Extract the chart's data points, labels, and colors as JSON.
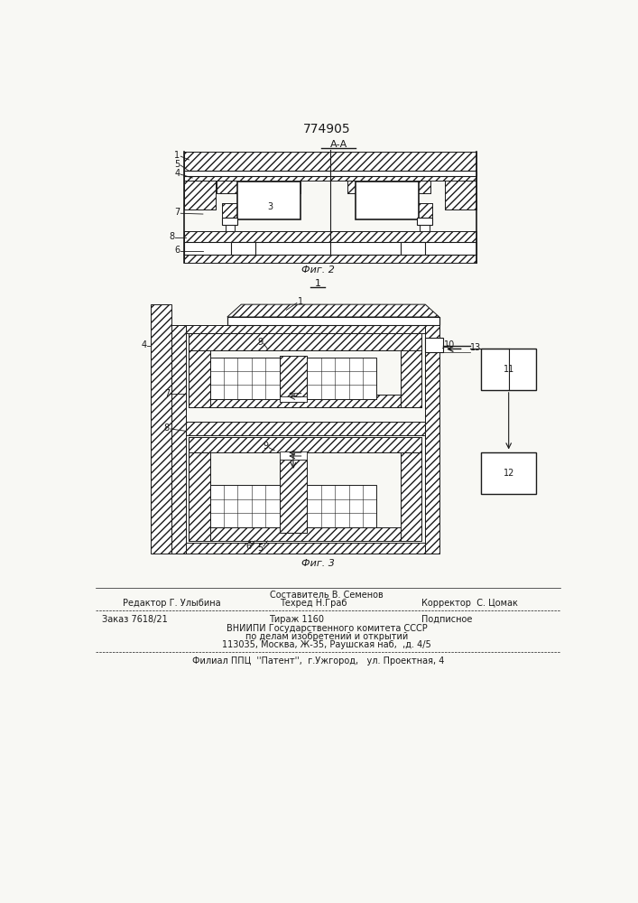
{
  "patent_number": "774905",
  "fig2_label": "Фиг. 2",
  "fig3_label": "Фиг. 3",
  "fig1_label": "1",
  "footer_line1_center": "Составитель В. Семенов",
  "footer_line2_left": "Редактор Г. Улыбина",
  "footer_line2_center": "Техред Н.Граб",
  "footer_line2_right": "Корректор  С. Цомак",
  "footer_line3_left": "Заказ 7618/21",
  "footer_line3_center": "Тираж 1160",
  "footer_line3_right": "Подписное",
  "footer_line4": "ВНИИПИ Государственного комитета СССР",
  "footer_line5": "по делам изобретений и открытий",
  "footer_line6": "113035, Москва, Ж-35, Раушская наб,  ,д. 4/5",
  "footer_line7": "Филиал ППЦ  ''Патент'',  г.Ужгород,   ул. Проектная, 4",
  "line_color": "#1a1a1a",
  "bg_color": "#f8f8f4"
}
